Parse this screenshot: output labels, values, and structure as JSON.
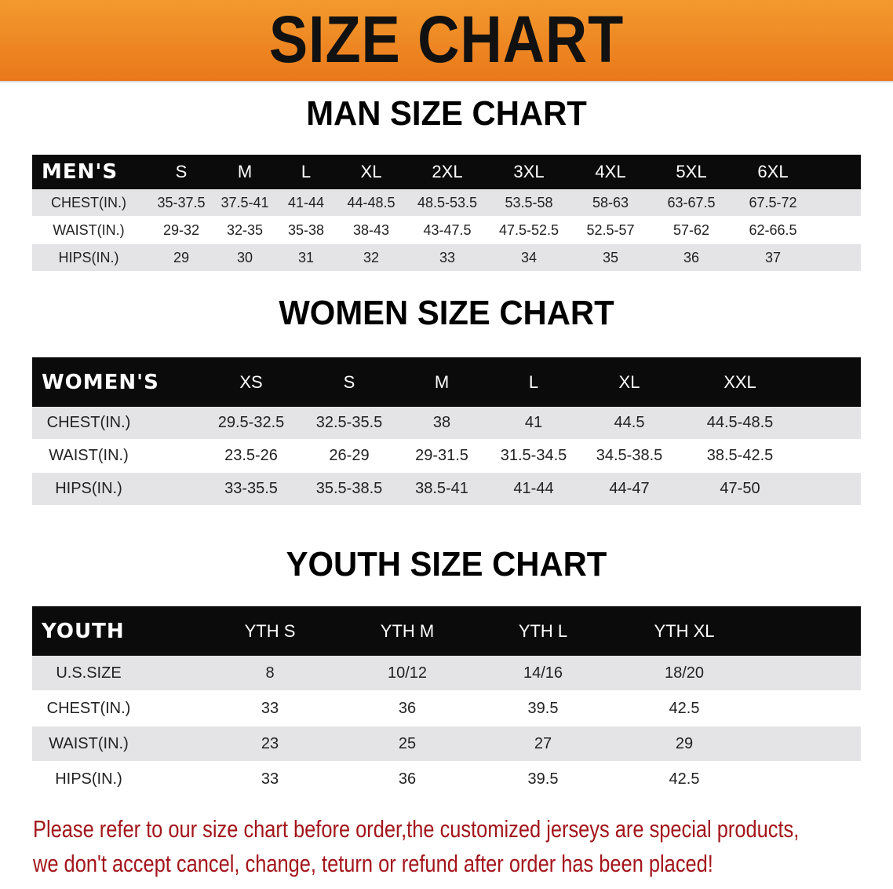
{
  "header": {
    "title": "SIZE CHART",
    "accent_color": "#ee8420"
  },
  "men": {
    "title": "MAN SIZE CHART",
    "header_label": "MEN'S",
    "sizes": [
      "S",
      "M",
      "L",
      "XL",
      "2XL",
      "3XL",
      "4XL",
      "5XL",
      "6XL"
    ],
    "rows": [
      {
        "label": "CHEST(IN.)",
        "values": [
          "35-37.5",
          "37.5-41",
          "41-44",
          "44-48.5",
          "48.5-53.5",
          "53.5-58",
          "58-63",
          "63-67.5",
          "67.5-72"
        ]
      },
      {
        "label": "WAIST(IN.)",
        "values": [
          "29-32",
          "32-35",
          "35-38",
          "38-43",
          "43-47.5",
          "47.5-52.5",
          "52.5-57",
          "57-62",
          "62-66.5"
        ]
      },
      {
        "label": "HIPS(IN.)",
        "values": [
          "29",
          "30",
          "31",
          "32",
          "33",
          "34",
          "35",
          "36",
          "37"
        ]
      }
    ]
  },
  "women": {
    "title": "WOMEN SIZE CHART",
    "header_label": "WOMEN'S",
    "sizes": [
      "XS",
      "S",
      "M",
      "L",
      "XL",
      "XXL"
    ],
    "rows": [
      {
        "label": "CHEST(IN.)",
        "values": [
          "29.5-32.5",
          "32.5-35.5",
          "38",
          "41",
          "44.5",
          "44.5-48.5"
        ]
      },
      {
        "label": "WAIST(IN.)",
        "values": [
          "23.5-26",
          "26-29",
          "29-31.5",
          "31.5-34.5",
          "34.5-38.5",
          "38.5-42.5"
        ]
      },
      {
        "label": "HIPS(IN.)",
        "values": [
          "33-35.5",
          "35.5-38.5",
          "38.5-41",
          "41-44",
          "44-47",
          "47-50"
        ]
      }
    ]
  },
  "youth": {
    "title": "YOUTH SIZE CHART",
    "header_label": "YOUTH",
    "sizes": [
      "YTH S",
      "YTH M",
      "YTH L",
      "YTH XL"
    ],
    "rows": [
      {
        "label": "U.S.SIZE",
        "values": [
          "8",
          "10/12",
          "14/16",
          "18/20"
        ]
      },
      {
        "label": "CHEST(IN.)",
        "values": [
          "33",
          "36",
          "39.5",
          "42.5"
        ]
      },
      {
        "label": "WAIST(IN.)",
        "values": [
          "23",
          "25",
          "27",
          "29"
        ]
      },
      {
        "label": "HIPS(IN.)",
        "values": [
          "33",
          "36",
          "39.5",
          "42.5"
        ]
      }
    ]
  },
  "notice": {
    "line1": "Please refer to our size chart before order,the customized jerseys are special products,",
    "line2": "we don't accept cancel, change, teturn or refund after order has been placed!",
    "color": "#a3151b"
  }
}
